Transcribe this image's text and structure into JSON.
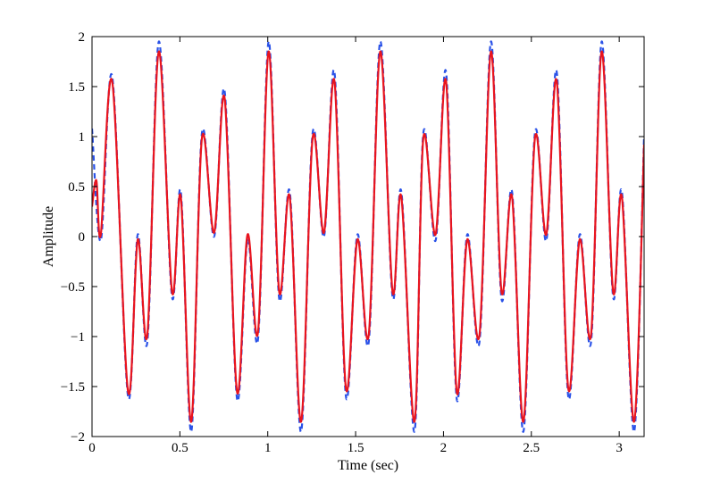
{
  "chart_data": {
    "type": "line",
    "title": "",
    "xlabel": "Time (sec)",
    "ylabel": "Amplitude",
    "xlim": [
      0,
      3.1416
    ],
    "ylim": [
      -2,
      2
    ],
    "grid": false,
    "xticks": [
      0,
      0.5,
      1,
      1.5,
      2,
      2.5,
      3
    ],
    "xtick_labels": [
      "0",
      "0.5",
      "1",
      "1.5",
      "2",
      "2.5",
      "3"
    ],
    "yticks": [
      -2,
      -1.5,
      -1,
      -0.5,
      0,
      0.5,
      1,
      1.5,
      2
    ],
    "ytick_labels": [
      "−2",
      "−1.5",
      "−1",
      "−0.5",
      "0",
      "0.5",
      "1",
      "1.5",
      "2"
    ],
    "series": [
      {
        "color": "#2a52e8",
        "style": "dashed",
        "x": [
          0,
          0.05,
          0.115,
          0.205,
          0.26,
          0.315,
          0.38,
          0.455,
          0.505,
          0.565,
          0.625,
          0.695,
          0.755,
          0.825,
          0.885,
          0.945,
          1.005,
          1.065,
          1.125,
          1.19,
          1.255,
          1.32,
          1.38,
          1.445,
          1.51,
          1.575,
          1.64,
          1.71,
          1.76,
          1.835,
          1.885,
          1.955,
          2.015,
          2.075,
          2.135,
          2.205,
          2.27,
          2.33,
          2.39,
          2.455,
          2.52,
          2.585,
          2.645,
          2.71,
          2.775,
          2.84,
          2.9,
          2.965,
          3.015,
          3.085,
          3.1416
        ],
        "y": [
          1.08,
          -0.04,
          1.6,
          -1.6,
          0.02,
          -1.05,
          1.95,
          -0.6,
          0.45,
          -1.95,
          1.03,
          0.0,
          1.45,
          -1.62,
          -0.03,
          -1.02,
          1.95,
          -0.62,
          0.45,
          -1.95,
          1.03,
          0.0,
          1.64,
          -1.6,
          0.02,
          -1.05,
          1.95,
          -0.6,
          0.45,
          -1.95,
          1.03,
          -0.04,
          1.64,
          -1.62,
          0.02,
          -1.05,
          1.95,
          -0.62,
          0.45,
          -1.95,
          1.03,
          -0.04,
          1.64,
          -1.6,
          0.02,
          -1.05,
          1.95,
          -0.6,
          0.45,
          -1.95,
          1.0
        ]
      },
      {
        "color": "#e8141e",
        "style": "solid",
        "x": [
          0,
          0.025,
          0.05,
          0.115,
          0.205,
          0.26,
          0.315,
          0.38,
          0.455,
          0.505,
          0.565,
          0.625,
          0.695,
          0.755,
          0.825,
          0.885,
          0.945,
          1.005,
          1.065,
          1.125,
          1.19,
          1.255,
          1.32,
          1.38,
          1.445,
          1.51,
          1.575,
          1.64,
          1.71,
          1.76,
          1.835,
          1.885,
          1.955,
          2.015,
          2.075,
          2.135,
          2.205,
          2.27,
          2.33,
          2.39,
          2.455,
          2.52,
          2.585,
          2.645,
          2.71,
          2.775,
          2.84,
          2.9,
          2.965,
          3.015,
          3.085,
          3.1416
        ],
        "y": [
          0.3,
          0.56,
          0.02,
          1.55,
          -1.55,
          -0.03,
          -0.98,
          1.85,
          -0.55,
          0.4,
          -1.85,
          0.98,
          0.04,
          1.38,
          -1.55,
          0.02,
          -0.95,
          1.85,
          -0.55,
          0.4,
          -1.85,
          0.98,
          0.04,
          1.55,
          -1.52,
          -0.03,
          -0.98,
          1.85,
          -0.55,
          0.4,
          -1.85,
          0.98,
          0.02,
          1.55,
          -1.55,
          -0.03,
          -0.98,
          1.85,
          -0.55,
          0.4,
          -1.85,
          0.98,
          0.02,
          1.55,
          -1.52,
          -0.03,
          -0.98,
          1.85,
          -0.55,
          0.4,
          -1.85,
          0.92
        ]
      }
    ]
  }
}
